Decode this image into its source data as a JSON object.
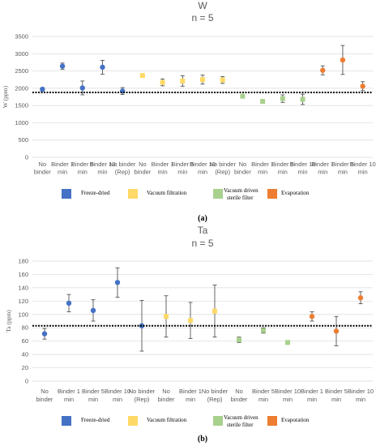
{
  "legend": [
    {
      "label": "Freeze-dried",
      "color": "#4472c4"
    },
    {
      "label": "Vacuum filtration",
      "color": "#ffd966"
    },
    {
      "label": "Vacuum driven sterile filter",
      "color": "#a9d18e"
    },
    {
      "label": "Evaporation",
      "color": "#ed7d31"
    }
  ],
  "chart_data": [
    {
      "type": "scatter",
      "title": "W",
      "subtitle": "n = 5",
      "panel_label": "(a)",
      "xlabel": "",
      "ylabel": "W (ppm)",
      "ylim": [
        0,
        3500
      ],
      "yticks": [
        0,
        500,
        1000,
        1500,
        2000,
        2500,
        3000,
        3500
      ],
      "grid": true,
      "reference_line": 1880,
      "legend_position": "bottom",
      "categories": [
        "No binder",
        "Binder 1 min",
        "Binder 5 min",
        "Binder 10 min",
        "No binder (Rep)",
        "No binder",
        "Binder 1 min",
        "Binder 5 min",
        "Binder 10 min",
        "No binder (Rep)",
        "No binder",
        "Binder 1 min",
        "Binder 5 min",
        "Binder 10 min",
        "Binder 1 min",
        "Binder 5 min",
        "Binder 10 min"
      ],
      "points": [
        {
          "x": 0,
          "y": 1970,
          "err": 50,
          "group": 0
        },
        {
          "x": 1,
          "y": 2640,
          "err": 90,
          "group": 0
        },
        {
          "x": 2,
          "y": 2010,
          "err": 200,
          "group": 0
        },
        {
          "x": 3,
          "y": 2610,
          "err": 200,
          "group": 0
        },
        {
          "x": 4,
          "y": 1920,
          "err": 100,
          "group": 0
        },
        {
          "x": 5,
          "y": 2370,
          "err": 40,
          "group": 1
        },
        {
          "x": 6,
          "y": 2170,
          "err": 100,
          "group": 1
        },
        {
          "x": 7,
          "y": 2210,
          "err": 150,
          "group": 1
        },
        {
          "x": 8,
          "y": 2250,
          "err": 130,
          "group": 1
        },
        {
          "x": 9,
          "y": 2240,
          "err": 100,
          "group": 1
        },
        {
          "x": 10,
          "y": 1770,
          "err": 30,
          "group": 2
        },
        {
          "x": 11,
          "y": 1620,
          "err": 30,
          "group": 2
        },
        {
          "x": 12,
          "y": 1700,
          "err": 110,
          "group": 2
        },
        {
          "x": 13,
          "y": 1680,
          "err": 150,
          "group": 2
        },
        {
          "x": 14,
          "y": 2520,
          "err": 130,
          "group": 3
        },
        {
          "x": 15,
          "y": 2820,
          "err": 420,
          "group": 3
        },
        {
          "x": 16,
          "y": 2060,
          "err": 130,
          "group": 3
        }
      ]
    },
    {
      "type": "scatter",
      "title": "Ta",
      "subtitle": "n = 5",
      "panel_label": "(b)",
      "xlabel": "",
      "ylabel": "Ta (ppm)",
      "ylim": [
        0,
        180
      ],
      "yticks": [
        0,
        20,
        40,
        60,
        80,
        100,
        120,
        140,
        160,
        180
      ],
      "grid": true,
      "reference_line": 83,
      "legend_position": "bottom",
      "categories": [
        "No binder",
        "Binder 1 min",
        "Binder 5 min",
        "Binder 10 min",
        "No binder (Rep)",
        "No binder",
        "Binder 1 min",
        "No binder (Rep)",
        "No binder",
        "Binder 5 min",
        "Binder 10 min",
        "Binder 1 min",
        "Binder 5 min",
        "Binder 10 min"
      ],
      "points": [
        {
          "x": 0,
          "y": 71,
          "err": 8,
          "group": 0
        },
        {
          "x": 1,
          "y": 117,
          "err": 13,
          "group": 0
        },
        {
          "x": 2,
          "y": 106,
          "err": 16,
          "group": 0
        },
        {
          "x": 3,
          "y": 148,
          "err": 22,
          "group": 0
        },
        {
          "x": 4,
          "y": 83,
          "err": 38,
          "group": 0
        },
        {
          "x": 5,
          "y": 97,
          "err": 31,
          "group": 1
        },
        {
          "x": 6,
          "y": 91,
          "err": 27,
          "group": 1
        },
        {
          "x": 7,
          "y": 105,
          "err": 39,
          "group": 1
        },
        {
          "x": 8,
          "y": 62,
          "err": 4,
          "group": 2
        },
        {
          "x": 9,
          "y": 76,
          "err": 4,
          "group": 2
        },
        {
          "x": 10,
          "y": 58,
          "err": 1,
          "group": 2
        },
        {
          "x": 11,
          "y": 97,
          "err": 7,
          "group": 3
        },
        {
          "x": 12,
          "y": 75,
          "err": 22,
          "group": 3
        },
        {
          "x": 13,
          "y": 125,
          "err": 9,
          "group": 3
        }
      ]
    }
  ]
}
